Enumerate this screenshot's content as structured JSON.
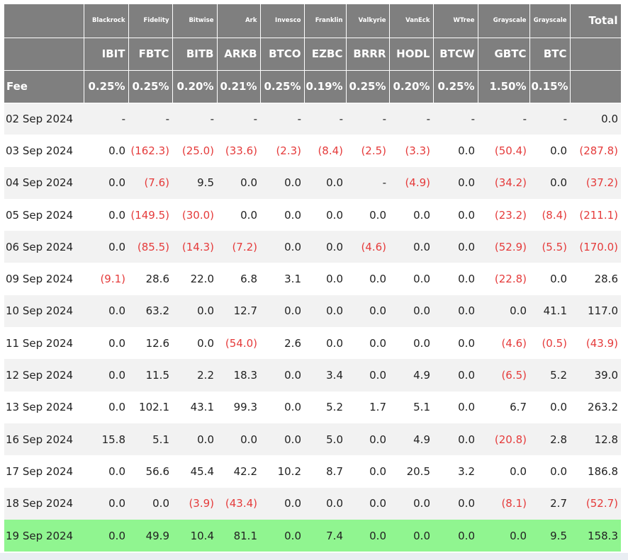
{
  "table": {
    "issuers": [
      "",
      "Blackrock",
      "Fidelity",
      "Bitwise",
      "Ark",
      "Invesco",
      "Franklin",
      "Valkyrie",
      "VanEck",
      "WTree",
      "Grayscale",
      "Grayscale",
      "Total"
    ],
    "tickers": [
      "",
      "IBIT",
      "FBTC",
      "BITB",
      "ARKB",
      "BTCO",
      "EZBC",
      "BRRR",
      "HODL",
      "BTCW",
      "GBTC",
      "BTC",
      ""
    ],
    "fees": [
      "Fee",
      "0.25%",
      "0.25%",
      "0.20%",
      "0.21%",
      "0.25%",
      "0.19%",
      "0.25%",
      "0.20%",
      "0.25%",
      "1.50%",
      "0.15%",
      ""
    ],
    "rows": [
      {
        "date": "02 Sep 2024",
        "values": [
          "-",
          "-",
          "-",
          "-",
          "-",
          "-",
          "-",
          "-",
          "-",
          "-",
          "-",
          "0.0"
        ],
        "highlight": false
      },
      {
        "date": "03 Sep 2024",
        "values": [
          "0.0",
          "(162.3)",
          "(25.0)",
          "(33.6)",
          "(2.3)",
          "(8.4)",
          "(2.5)",
          "(3.3)",
          "0.0",
          "(50.4)",
          "0.0",
          "(287.8)"
        ],
        "highlight": false
      },
      {
        "date": "04 Sep 2024",
        "values": [
          "0.0",
          "(7.6)",
          "9.5",
          "0.0",
          "0.0",
          "0.0",
          "-",
          "(4.9)",
          "0.0",
          "(34.2)",
          "0.0",
          "(37.2)"
        ],
        "highlight": false
      },
      {
        "date": "05 Sep 2024",
        "values": [
          "0.0",
          "(149.5)",
          "(30.0)",
          "0.0",
          "0.0",
          "0.0",
          "0.0",
          "0.0",
          "0.0",
          "(23.2)",
          "(8.4)",
          "(211.1)"
        ],
        "highlight": false
      },
      {
        "date": "06 Sep 2024",
        "values": [
          "0.0",
          "(85.5)",
          "(14.3)",
          "(7.2)",
          "0.0",
          "0.0",
          "(4.6)",
          "0.0",
          "0.0",
          "(52.9)",
          "(5.5)",
          "(170.0)"
        ],
        "highlight": false
      },
      {
        "date": "09 Sep 2024",
        "values": [
          "(9.1)",
          "28.6",
          "22.0",
          "6.8",
          "3.1",
          "0.0",
          "0.0",
          "0.0",
          "0.0",
          "(22.8)",
          "0.0",
          "28.6"
        ],
        "highlight": false
      },
      {
        "date": "10 Sep 2024",
        "values": [
          "0.0",
          "63.2",
          "0.0",
          "12.7",
          "0.0",
          "0.0",
          "0.0",
          "0.0",
          "0.0",
          "0.0",
          "41.1",
          "117.0"
        ],
        "highlight": false
      },
      {
        "date": "11 Sep 2024",
        "values": [
          "0.0",
          "12.6",
          "0.0",
          "(54.0)",
          "2.6",
          "0.0",
          "0.0",
          "0.0",
          "0.0",
          "(4.6)",
          "(0.5)",
          "(43.9)"
        ],
        "highlight": false
      },
      {
        "date": "12 Sep 2024",
        "values": [
          "0.0",
          "11.5",
          "2.2",
          "18.3",
          "0.0",
          "3.4",
          "0.0",
          "4.9",
          "0.0",
          "(6.5)",
          "5.2",
          "39.0"
        ],
        "highlight": false
      },
      {
        "date": "13 Sep 2024",
        "values": [
          "0.0",
          "102.1",
          "43.1",
          "99.3",
          "0.0",
          "5.2",
          "1.7",
          "5.1",
          "0.0",
          "6.7",
          "0.0",
          "263.2"
        ],
        "highlight": false
      },
      {
        "date": "16 Sep 2024",
        "values": [
          "15.8",
          "5.1",
          "0.0",
          "0.0",
          "0.0",
          "5.0",
          "0.0",
          "4.9",
          "0.0",
          "(20.8)",
          "2.8",
          "12.8"
        ],
        "highlight": false
      },
      {
        "date": "17 Sep 2024",
        "values": [
          "0.0",
          "56.6",
          "45.4",
          "42.2",
          "10.2",
          "8.7",
          "0.0",
          "20.5",
          "3.2",
          "0.0",
          "0.0",
          "186.8"
        ],
        "highlight": false
      },
      {
        "date": "18 Sep 2024",
        "values": [
          "0.0",
          "0.0",
          "(3.9)",
          "(43.4)",
          "0.0",
          "0.0",
          "0.0",
          "0.0",
          "0.0",
          "(8.1)",
          "2.7",
          "(52.7)"
        ],
        "highlight": false
      },
      {
        "date": "19 Sep 2024",
        "values": [
          "0.0",
          "49.9",
          "10.4",
          "81.1",
          "0.0",
          "7.4",
          "0.0",
          "0.0",
          "0.0",
          "0.0",
          "9.5",
          "158.3"
        ],
        "highlight": true
      }
    ]
  },
  "colors": {
    "header_bg": "#7f7f7f",
    "negative": "#e53b3b",
    "highlight": "#90f590"
  }
}
